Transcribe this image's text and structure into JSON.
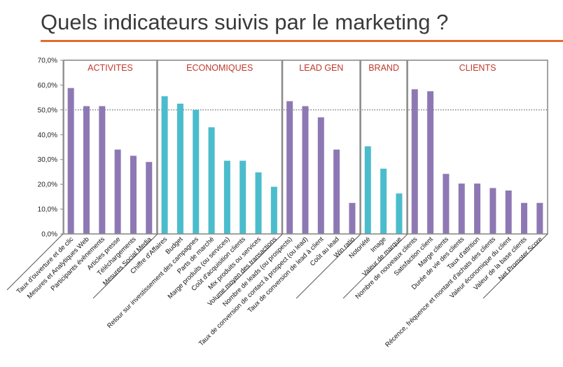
{
  "title": "Quels indicateurs suivis par le marketing ?",
  "colors": {
    "accent_rule": "#e36c2b",
    "purple": "#8e78b4",
    "teal": "#4bbccc",
    "group_text": "#c0392b",
    "box": "#8c8c8c"
  },
  "chart_data": {
    "type": "bar",
    "ylim": [
      0,
      70
    ],
    "y_ticks": [
      "0,0%",
      "10,0%",
      "20,0%",
      "30,0%",
      "40,0%",
      "50,0%",
      "60,0%",
      "70,0%"
    ],
    "y_tick_values": [
      0,
      10,
      20,
      30,
      40,
      50,
      60,
      70
    ],
    "reference_line": 50,
    "groups": [
      {
        "name": "ACTIVITES",
        "start": 0,
        "end": 5
      },
      {
        "name": "ECONOMIQUES",
        "start": 6,
        "end": 13
      },
      {
        "name": "LEAD GEN",
        "start": 14,
        "end": 18
      },
      {
        "name": "BRAND",
        "start": 19,
        "end": 21
      },
      {
        "name": "CLIENTS",
        "start": 22,
        "end": 30
      }
    ],
    "categories": [
      "Taux d'ouverture et de clic",
      "Mesures et Analytiques Web",
      "Participants évènements",
      "Articles presse",
      "Téléchargements",
      "Mesures Social Media",
      "Chiffre d'Affaires",
      "Budget",
      "Retour sur investissement des campagnes",
      "Parts de marché",
      "Marge produits (ou services)",
      "Coût d'acquisition clients",
      "Mix produits ou services",
      "Volume moyen des transactions",
      "Nombre de leads (ou prospects)",
      "Taux de conversion de contact à prospect (ou lead)",
      "Taux de conversion de lead à client",
      "Coût au lead",
      "Win ratio",
      "Notoriété",
      "Image",
      "Valeur de marque",
      "Nombre de nouveaux clients",
      "Satisfaction client",
      "Marge clients",
      "Durée de vie des clients",
      "Taux d'attrition",
      "Récence, fréquence et montant d'achats des clients",
      "Valeur économique du client",
      "Valeur de la base clients",
      "Net Promoter Score"
    ],
    "values": [
      58.8,
      51.5,
      51.5,
      34,
      31.5,
      29,
      55.5,
      52.5,
      50,
      43,
      29.5,
      29.5,
      24.8,
      19,
      53.5,
      51.5,
      47,
      34,
      12.5,
      35.3,
      26.3,
      16.3,
      58.3,
      57.5,
      24.2,
      20.3,
      20.3,
      18.5,
      17.5,
      12.5,
      12.5
    ],
    "bar_colors": [
      "purple",
      "purple",
      "purple",
      "purple",
      "purple",
      "purple",
      "teal",
      "teal",
      "teal",
      "teal",
      "teal",
      "teal",
      "teal",
      "teal",
      "purple",
      "purple",
      "purple",
      "purple",
      "purple",
      "teal",
      "teal",
      "teal",
      "purple",
      "purple",
      "purple",
      "purple",
      "purple",
      "purple",
      "purple",
      "purple",
      "purple"
    ]
  }
}
